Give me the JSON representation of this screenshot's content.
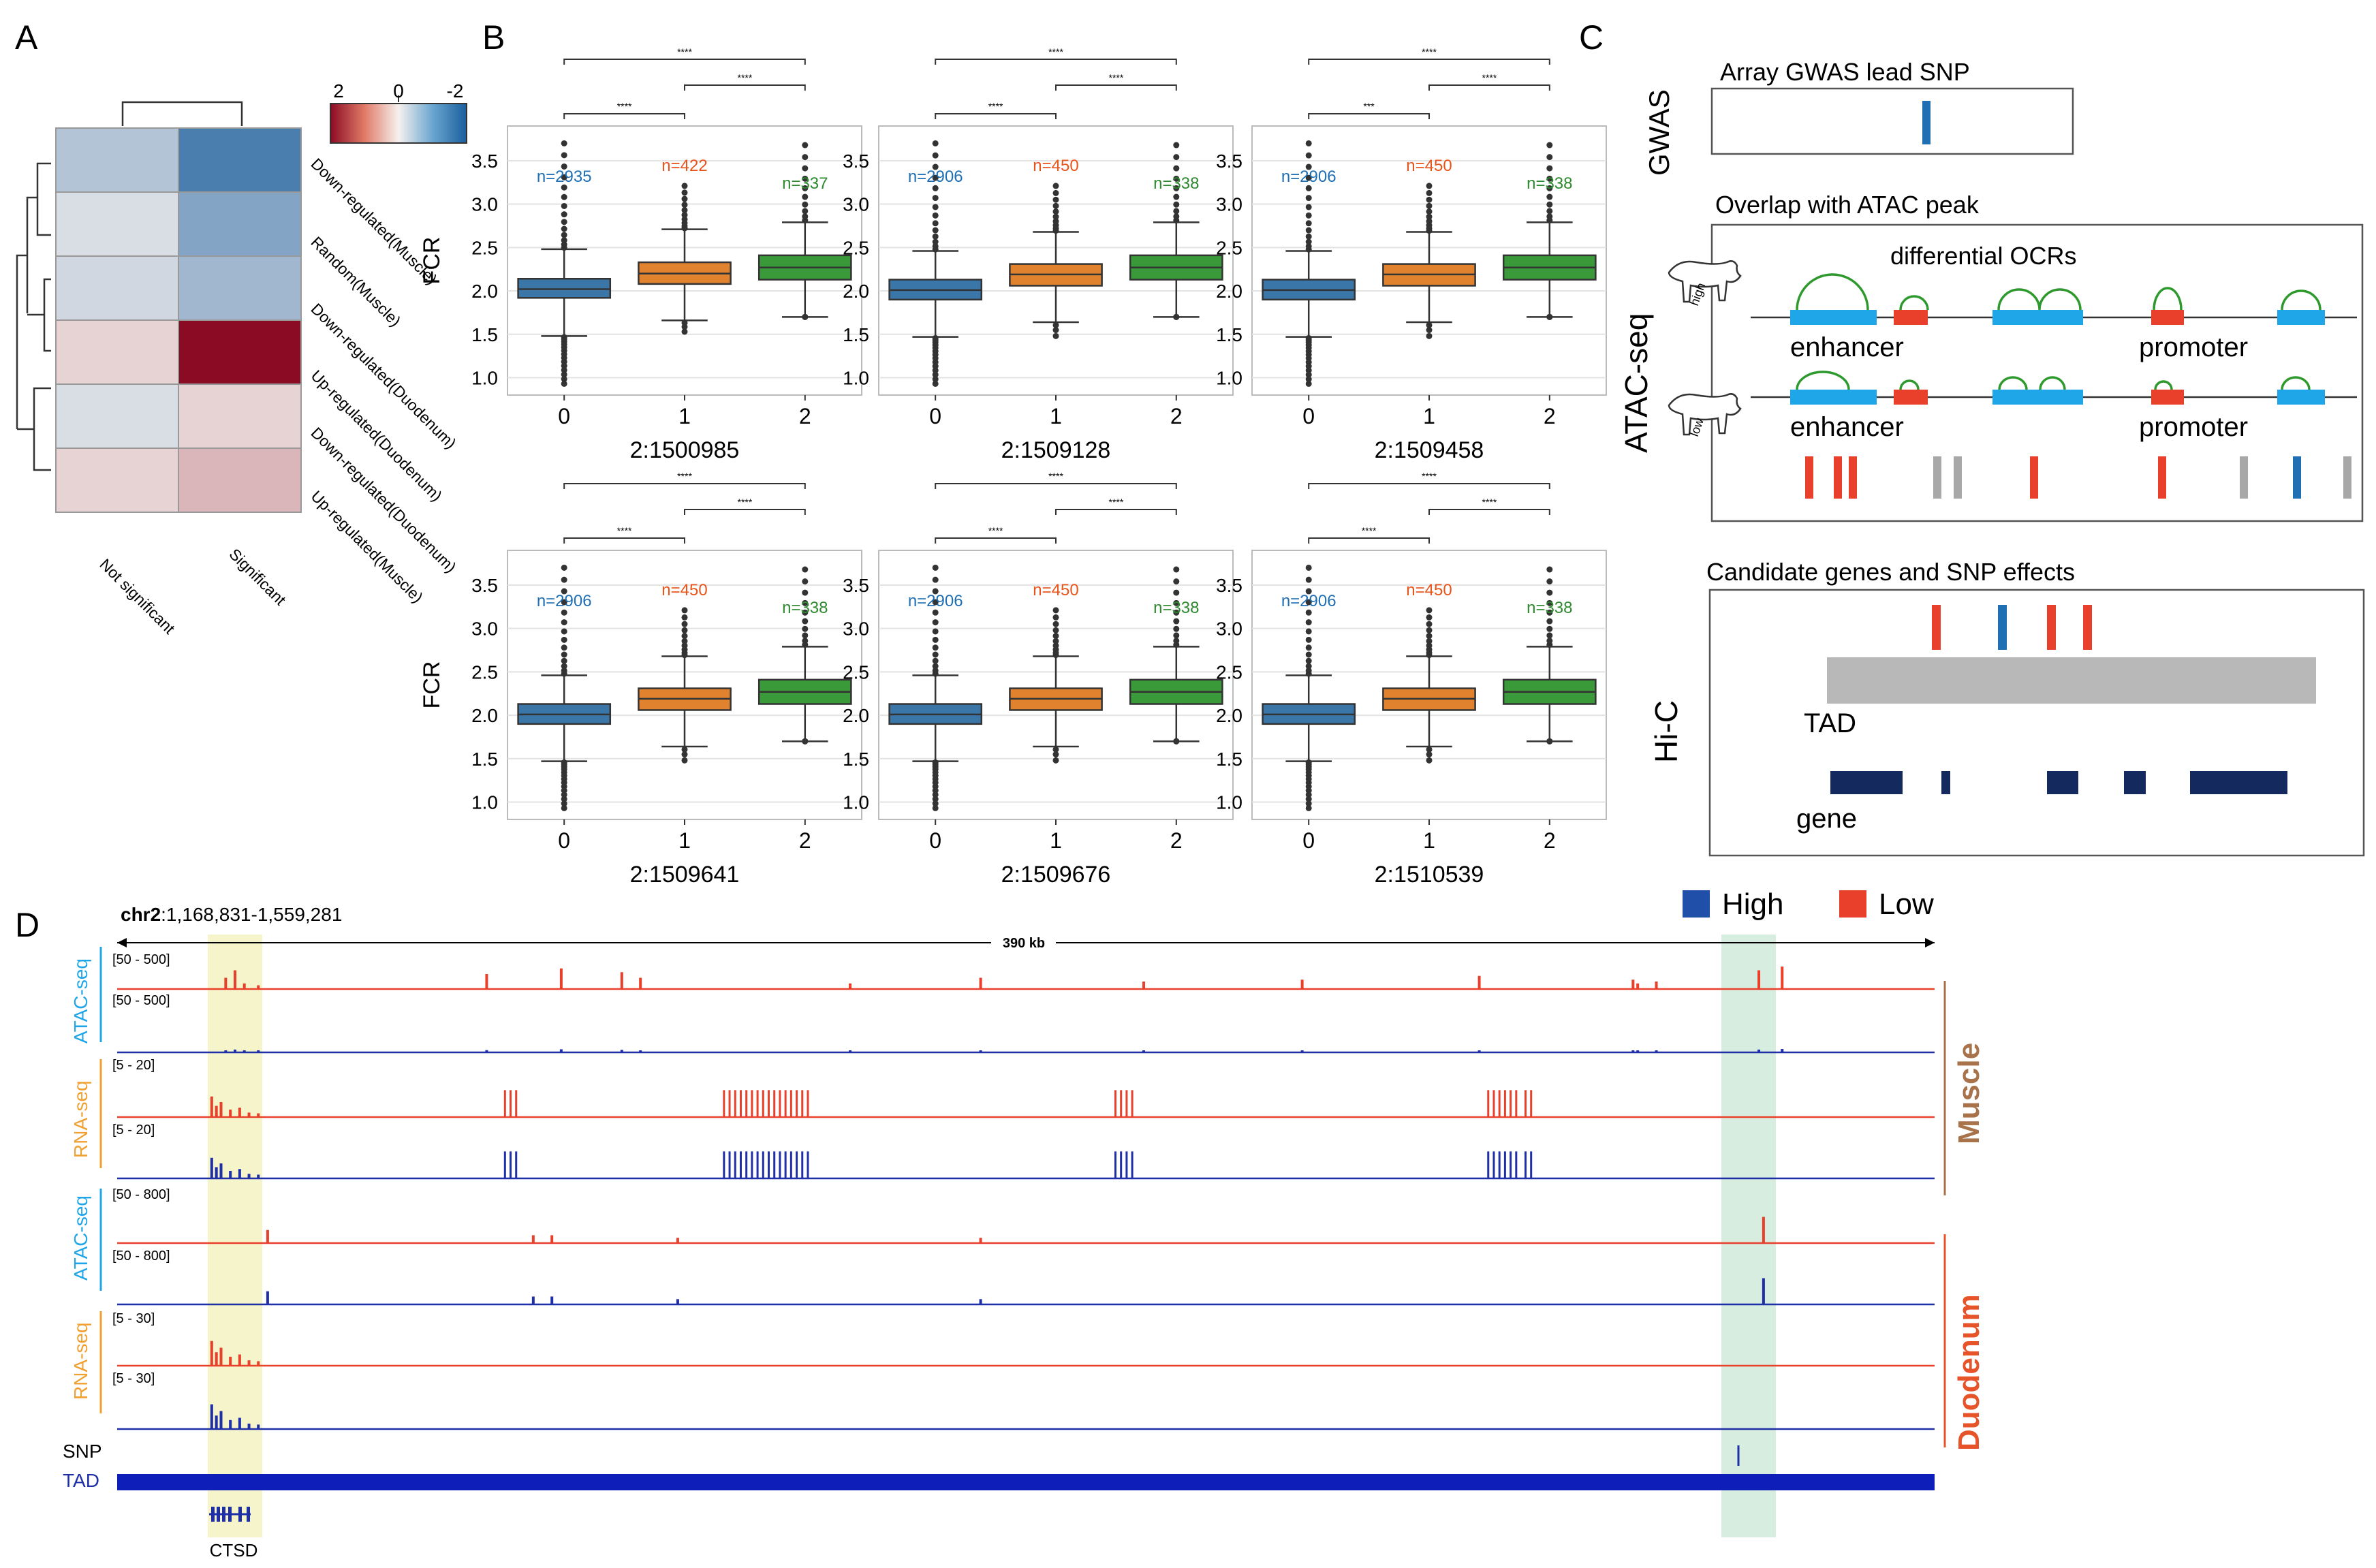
{
  "panels": {
    "a": {
      "letter": "A",
      "colorbar_ticks": [
        "2",
        "0",
        "-2"
      ],
      "columns": [
        "Not significant",
        "Significant"
      ],
      "rows": [
        "Down-regulated(Muscle)",
        "Random(Muscle)",
        "Down-regulated(Duodenum)",
        "Up-regulated(Duodenum)",
        "Down-regulated(Duodenum)",
        "Up-regulated(Muscle)"
      ]
    },
    "b": {
      "letter": "B"
    },
    "c": {
      "letter": "C",
      "gwas_side": "GWAS",
      "gwas_title": "Array GWAS lead SNP",
      "atac_side": "ATAC-seq",
      "atac_title": "Overlap with ATAC peak",
      "ocr_label": "differential OCRs",
      "enhancer": "enhancer",
      "promoter": "promoter",
      "high_tag": "high",
      "low_tag": "low",
      "hic_side": "Hi-C",
      "cand_title": "Candidate genes and SNP effects",
      "tad": "TAD",
      "gene": "gene"
    },
    "d": {
      "letter": "D",
      "coord_chr": "chr2",
      "coord_range": ":1,168,831-1,559,281",
      "span": "390 kb",
      "legend_high": "High",
      "legend_low": "Low",
      "muscle": "Muscle",
      "duodenum": "Duodenum",
      "atac": "ATAC-seq",
      "rna": "RNA-seq",
      "range_atac_m": "[50 - 500]",
      "range_rna_m": "[5 - 20]",
      "range_atac_d": "[50 - 800]",
      "range_rna_d": "[5 - 30]",
      "snp": "SNP",
      "tad": "TAD",
      "gene": "CTSD"
    }
  },
  "colors": {
    "high": "#1f4fa8",
    "low": "#e8402a",
    "blue_box": "#3a76a8",
    "orange_box": "#e0822e",
    "green_box": "#3a9a3a"
  },
  "chart_data": [
    {
      "type": "heatmap",
      "panel": "A",
      "columns": [
        "Not significant",
        "Significant"
      ],
      "rows": [
        "Down-regulated(Muscle)",
        "Random(Muscle)",
        "Down-regulated(Duodenum)",
        "Up-regulated(Duodenum)",
        "Down-regulated(Duodenum)",
        "Up-regulated(Muscle)"
      ],
      "values": [
        [
          -0.7,
          -1.8
        ],
        [
          -0.3,
          -1.2
        ],
        [
          -0.4,
          -0.9
        ],
        [
          0.3,
          2.3
        ],
        [
          -0.3,
          0.3
        ],
        [
          0.3,
          0.6
        ]
      ],
      "colorbar": [
        2,
        0,
        -2
      ]
    },
    {
      "type": "box",
      "panel": "B",
      "ylabel": "FCR",
      "ylim": [
        0.8,
        3.9
      ],
      "yticks": [
        1.0,
        1.5,
        2.0,
        2.5,
        3.0,
        3.5
      ],
      "categories": [
        "0",
        "1",
        "2"
      ],
      "sig_label": "****",
      "plots": [
        {
          "snp": "2:1500985",
          "n": [
            "n=2935",
            "n=422",
            "n=337"
          ],
          "sig": [
            "****",
            "****",
            "****"
          ],
          "boxes": [
            {
              "q1": 1.92,
              "median": 2.02,
              "q3": 2.14,
              "wlo": 1.48,
              "whi": 2.48,
              "fmin": 0.93,
              "fmax": 3.7
            },
            {
              "q1": 2.08,
              "median": 2.2,
              "q3": 2.33,
              "wlo": 1.66,
              "whi": 2.71,
              "fmin": 1.53,
              "fmax": 3.21
            },
            {
              "q1": 2.13,
              "median": 2.27,
              "q3": 2.41,
              "wlo": 1.7,
              "whi": 2.79,
              "fmin": 1.7,
              "fmax": 3.68
            }
          ]
        },
        {
          "snp": "2:1509128",
          "n": [
            "n=2906",
            "n=450",
            "n=338"
          ],
          "sig": [
            "****",
            "****",
            "****"
          ],
          "boxes": [
            {
              "q1": 1.9,
              "median": 2.01,
              "q3": 2.13,
              "wlo": 1.47,
              "whi": 2.46,
              "fmin": 0.93,
              "fmax": 3.7
            },
            {
              "q1": 2.06,
              "median": 2.19,
              "q3": 2.31,
              "wlo": 1.64,
              "whi": 2.68,
              "fmin": 1.48,
              "fmax": 3.21
            },
            {
              "q1": 2.13,
              "median": 2.27,
              "q3": 2.41,
              "wlo": 1.7,
              "whi": 2.79,
              "fmin": 1.7,
              "fmax": 3.68
            }
          ]
        },
        {
          "snp": "2:1509458",
          "n": [
            "n=2906",
            "n=450",
            "n=338"
          ],
          "sig": [
            "***",
            "****",
            "****"
          ],
          "boxes": [
            {
              "q1": 1.9,
              "median": 2.01,
              "q3": 2.13,
              "wlo": 1.47,
              "whi": 2.46,
              "fmin": 0.93,
              "fmax": 3.7
            },
            {
              "q1": 2.06,
              "median": 2.19,
              "q3": 2.31,
              "wlo": 1.64,
              "whi": 2.68,
              "fmin": 1.48,
              "fmax": 3.21
            },
            {
              "q1": 2.13,
              "median": 2.27,
              "q3": 2.41,
              "wlo": 1.7,
              "whi": 2.79,
              "fmin": 1.7,
              "fmax": 3.68
            }
          ]
        },
        {
          "snp": "2:1509641",
          "n": [
            "n=2906",
            "n=450",
            "n=338"
          ],
          "sig": [
            "****",
            "****",
            "****"
          ],
          "boxes": [
            {
              "q1": 1.9,
              "median": 2.01,
              "q3": 2.13,
              "wlo": 1.47,
              "whi": 2.46,
              "fmin": 0.93,
              "fmax": 3.7
            },
            {
              "q1": 2.06,
              "median": 2.19,
              "q3": 2.31,
              "wlo": 1.64,
              "whi": 2.68,
              "fmin": 1.48,
              "fmax": 3.21
            },
            {
              "q1": 2.13,
              "median": 2.27,
              "q3": 2.41,
              "wlo": 1.7,
              "whi": 2.79,
              "fmin": 1.7,
              "fmax": 3.68
            }
          ]
        },
        {
          "snp": "2:1509676",
          "n": [
            "n=2906",
            "n=450",
            "n=338"
          ],
          "sig": [
            "****",
            "****",
            "****"
          ],
          "boxes": [
            {
              "q1": 1.9,
              "median": 2.01,
              "q3": 2.13,
              "wlo": 1.47,
              "whi": 2.46,
              "fmin": 0.93,
              "fmax": 3.7
            },
            {
              "q1": 2.06,
              "median": 2.19,
              "q3": 2.31,
              "wlo": 1.64,
              "whi": 2.68,
              "fmin": 1.48,
              "fmax": 3.21
            },
            {
              "q1": 2.13,
              "median": 2.27,
              "q3": 2.41,
              "wlo": 1.7,
              "whi": 2.79,
              "fmin": 1.7,
              "fmax": 3.68
            }
          ]
        },
        {
          "snp": "2:1510539",
          "n": [
            "n=2906",
            "n=450",
            "n=338"
          ],
          "sig": [
            "****",
            "****",
            "****"
          ],
          "boxes": [
            {
              "q1": 1.9,
              "median": 2.01,
              "q3": 2.13,
              "wlo": 1.47,
              "whi": 2.46,
              "fmin": 0.93,
              "fmax": 3.7
            },
            {
              "q1": 2.06,
              "median": 2.19,
              "q3": 2.31,
              "wlo": 1.64,
              "whi": 2.68,
              "fmin": 1.48,
              "fmax": 3.21
            },
            {
              "q1": 2.13,
              "median": 2.27,
              "q3": 2.41,
              "wlo": 1.7,
              "whi": 2.79,
              "fmin": 1.7,
              "fmax": 3.68
            }
          ]
        }
      ]
    },
    {
      "type": "genome-tracks",
      "panel": "D",
      "region": {
        "chr": "chr2",
        "start": 1168831,
        "end": 1559281
      },
      "ctsd_region_kb": [
        20,
        32
      ],
      "snp_region_kb": [
        348,
        358
      ],
      "atac_muscle_peaks_kb": [
        [
          25,
          0.5
        ],
        [
          79,
          0.4
        ],
        [
          95,
          0.55
        ],
        [
          108,
          0.45
        ],
        [
          112,
          0.3
        ],
        [
          157,
          0.15
        ],
        [
          185,
          0.3
        ],
        [
          220,
          0.2
        ],
        [
          254,
          0.25
        ],
        [
          292,
          0.35
        ],
        [
          325,
          0.25
        ],
        [
          330,
          0.2
        ],
        [
          326,
          0.15
        ],
        [
          352,
          0.5
        ],
        [
          357,
          0.6
        ]
      ],
      "rna_exon_clusters_kb": [
        [
          83,
          86
        ],
        [
          130,
          148
        ],
        [
          214,
          218
        ],
        [
          294,
          300
        ],
        [
          302,
          304
        ]
      ]
    }
  ]
}
